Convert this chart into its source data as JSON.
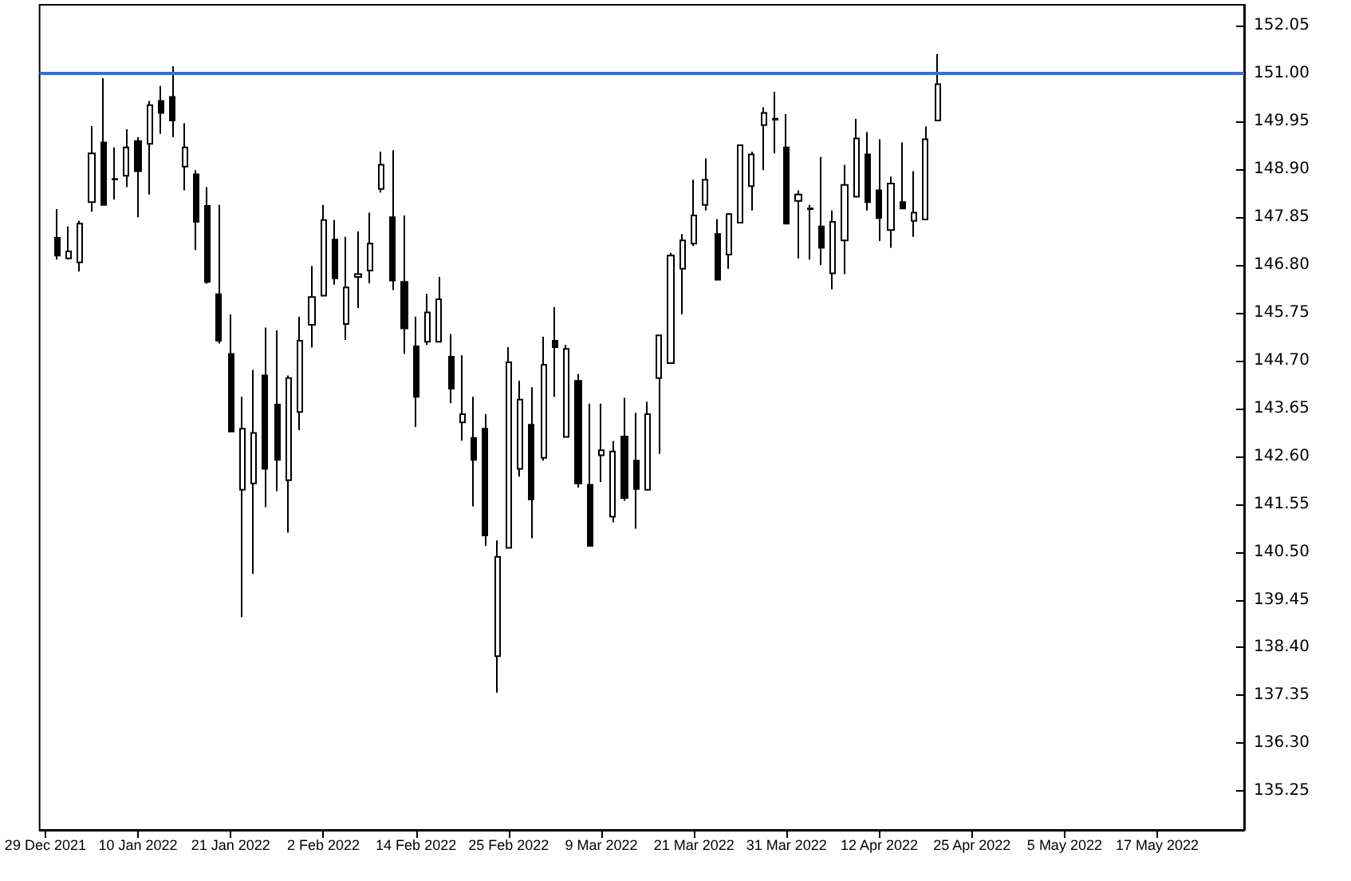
{
  "chart_data": {
    "type": "candlestick",
    "color": "#000000",
    "categories": [
      "29 Dec 2021",
      null,
      null,
      null,
      null,
      null,
      null,
      null,
      "10 Jan 2022",
      null,
      null,
      null,
      null,
      null,
      null,
      null,
      "21 Jan 2022",
      null,
      null,
      null,
      null,
      null,
      null,
      null,
      "2 Feb 2022",
      null,
      null,
      null,
      null,
      null,
      null,
      null,
      "14 Feb 2022",
      null,
      null,
      null,
      null,
      null,
      null,
      null,
      "25 Feb 2022",
      null,
      null,
      null,
      null,
      null,
      null,
      null,
      "9 Mar 2022",
      null,
      null,
      null,
      null,
      null,
      null,
      null,
      "21 Mar 2022",
      null,
      null,
      null,
      null,
      null,
      null,
      null,
      "31 Mar 2022",
      null,
      null,
      null,
      null,
      null,
      null,
      null,
      "12 Apr 2022",
      null,
      null,
      null,
      null,
      null,
      null,
      null,
      "25 Apr 2022",
      null,
      null,
      null,
      null,
      null,
      null,
      null,
      "5 May 2022",
      null,
      null,
      null,
      null,
      null,
      null,
      null,
      "17 May 2022",
      null,
      null,
      null,
      null,
      null,
      null,
      null
    ],
    "ohlc": [
      null,
      [
        147.39,
        148.02,
        146.91,
        147.0
      ],
      [
        146.94,
        147.64,
        146.91,
        147.09
      ],
      [
        146.85,
        147.76,
        146.65,
        147.7
      ],
      [
        148.17,
        149.84,
        147.96,
        149.24
      ],
      [
        149.48,
        150.89,
        148.11,
        148.11
      ],
      [
        148.68,
        149.37,
        148.23,
        148.67
      ],
      [
        148.75,
        149.77,
        148.5,
        149.37
      ],
      [
        149.51,
        149.6,
        147.84,
        148.85
      ],
      [
        149.45,
        150.39,
        148.34,
        150.3
      ],
      [
        150.39,
        150.72,
        149.67,
        150.13
      ],
      [
        150.48,
        151.15,
        149.6,
        149.96
      ],
      [
        148.95,
        149.9,
        148.43,
        149.37
      ],
      [
        148.78,
        148.87,
        147.12,
        147.74
      ],
      [
        148.09,
        148.5,
        146.38,
        146.42
      ],
      [
        146.15,
        148.11,
        145.07,
        145.13
      ],
      [
        144.84,
        145.71,
        143.14,
        143.14
      ],
      [
        141.86,
        143.9,
        139.07,
        143.2
      ],
      [
        142.0,
        144.49,
        140.02,
        143.11
      ],
      [
        144.37,
        145.42,
        141.48,
        142.32
      ],
      [
        143.73,
        145.36,
        141.83,
        142.52
      ],
      [
        142.07,
        144.37,
        140.92,
        144.31
      ],
      [
        143.57,
        145.66,
        143.17,
        145.13
      ],
      [
        145.48,
        146.77,
        144.98,
        146.09
      ],
      [
        146.12,
        148.11,
        146.12,
        147.78
      ],
      [
        147.35,
        147.78,
        146.36,
        146.5
      ],
      [
        145.5,
        147.41,
        145.15,
        146.3
      ],
      [
        146.53,
        147.53,
        145.85,
        146.59
      ],
      [
        146.67,
        147.94,
        146.39,
        147.26
      ],
      [
        148.46,
        149.28,
        148.38,
        148.99
      ],
      [
        147.84,
        149.31,
        146.24,
        146.45
      ],
      [
        146.42,
        147.88,
        144.84,
        145.4
      ],
      [
        145.01,
        145.66,
        143.24,
        143.9
      ],
      [
        145.11,
        146.16,
        145.04,
        145.75
      ],
      [
        145.11,
        146.53,
        145.11,
        146.04
      ],
      [
        144.78,
        145.28,
        143.76,
        144.08
      ],
      [
        143.34,
        144.81,
        142.94,
        143.52
      ],
      [
        143.0,
        143.9,
        141.5,
        142.52
      ],
      [
        143.2,
        143.52,
        140.63,
        140.86
      ],
      [
        138.21,
        140.75,
        137.41,
        140.39
      ],
      [
        140.59,
        144.99,
        140.59,
        144.66
      ],
      [
        142.32,
        144.25,
        142.15,
        143.84
      ],
      [
        143.29,
        144.11,
        140.8,
        141.65
      ],
      [
        142.56,
        145.22,
        142.5,
        144.6
      ],
      [
        145.13,
        145.87,
        143.9,
        144.99
      ],
      [
        143.02,
        145.04,
        143.02,
        144.95
      ],
      [
        144.25,
        144.4,
        141.91,
        142.0
      ],
      [
        141.97,
        143.75,
        140.63,
        140.63
      ],
      [
        142.62,
        143.75,
        142.03,
        142.73
      ],
      [
        141.27,
        142.93,
        141.15,
        142.7
      ],
      [
        143.03,
        143.88,
        141.62,
        141.68
      ],
      [
        142.5,
        143.55,
        141.01,
        141.88
      ],
      [
        141.86,
        143.79,
        141.86,
        143.52
      ],
      [
        144.31,
        145.25,
        142.65,
        145.25
      ],
      [
        144.64,
        147.06,
        144.64,
        147.0
      ],
      [
        146.71,
        147.47,
        145.71,
        147.33
      ],
      [
        147.26,
        148.66,
        147.21,
        147.88
      ],
      [
        148.11,
        149.13,
        147.99,
        148.66
      ],
      [
        147.47,
        147.8,
        146.45,
        146.47
      ],
      [
        147.02,
        147.93,
        146.71,
        147.91
      ],
      [
        147.72,
        149.42,
        147.72,
        149.42
      ],
      [
        148.52,
        149.28,
        147.99,
        149.22
      ],
      [
        149.86,
        150.25,
        148.87,
        150.13
      ],
      [
        150.0,
        150.59,
        149.24,
        149.98
      ],
      [
        149.37,
        150.1,
        147.7,
        147.7
      ],
      [
        148.2,
        148.43,
        146.94,
        148.34
      ],
      [
        148.03,
        148.11,
        146.91,
        148.02
      ],
      [
        147.64,
        149.16,
        146.79,
        147.17
      ],
      [
        146.61,
        147.99,
        146.26,
        147.74
      ],
      [
        147.33,
        148.99,
        146.59,
        148.55
      ],
      [
        148.29,
        150.0,
        148.29,
        149.57
      ],
      [
        149.22,
        149.71,
        147.99,
        148.17
      ],
      [
        148.43,
        149.55,
        147.32,
        147.82
      ],
      [
        147.56,
        148.73,
        147.17,
        148.58
      ],
      [
        148.17,
        149.48,
        148.03,
        148.03
      ],
      [
        147.76,
        148.85,
        147.41,
        147.94
      ],
      [
        147.79,
        149.83,
        147.79,
        149.55
      ],
      [
        149.96,
        151.42,
        149.96,
        150.76
      ],
      null,
      null,
      null,
      null,
      null,
      null,
      null,
      null,
      null,
      null,
      null,
      null,
      null,
      null,
      null,
      null,
      null,
      null,
      null,
      null,
      null,
      null,
      null,
      null,
      null,
      null
    ],
    "ylim": [
      134.4,
      152.5
    ],
    "yticks": [
      {
        "value": 135.25,
        "label": "135.25"
      },
      {
        "value": 136.3,
        "label": "136.30"
      },
      {
        "value": 137.35,
        "label": "137.35"
      },
      {
        "value": 138.4,
        "label": "138.40"
      },
      {
        "value": 139.45,
        "label": "139.45"
      },
      {
        "value": 140.5,
        "label": "140.50"
      },
      {
        "value": 141.55,
        "label": "141.55"
      },
      {
        "value": 142.6,
        "label": "142.60"
      },
      {
        "value": 143.65,
        "label": "143.65"
      },
      {
        "value": 144.7,
        "label": "144.70"
      },
      {
        "value": 145.75,
        "label": "145.75"
      },
      {
        "value": 146.8,
        "label": "146.80"
      },
      {
        "value": 147.85,
        "label": "147.85"
      },
      {
        "value": 148.9,
        "label": "148.90"
      },
      {
        "value": 149.95,
        "label": "149.95"
      },
      {
        "value": 151,
        "label": "151.00"
      },
      {
        "value": 152.05,
        "label": "152.05"
      }
    ],
    "ref_lines": [
      {
        "axis": "y",
        "value": 151.0,
        "color": "#3a6fcf",
        "line_style": "solid"
      }
    ],
    "grid": false
  }
}
